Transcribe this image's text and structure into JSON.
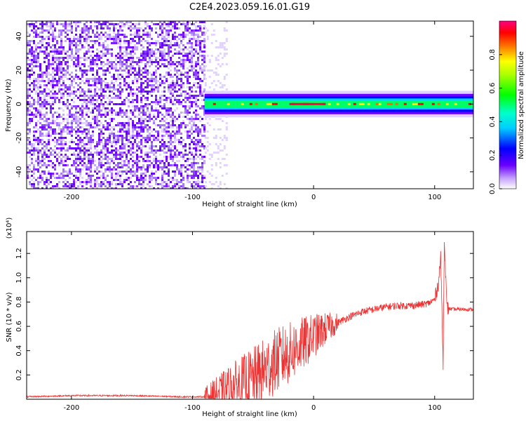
{
  "title": "C2E4.2023.059.16.01.G19",
  "chart_data": [
    {
      "type": "heatmap",
      "xlabel": "Height of straight line (km)",
      "ylabel": "Frequency (Hz)",
      "xlim": [
        -237,
        132
      ],
      "ylim": [
        -50,
        49
      ],
      "x_ticks": [
        -200,
        -100,
        0,
        100
      ],
      "y_ticks": [
        -40,
        -20,
        0,
        20,
        40
      ],
      "colorbar": {
        "label": "Normalized spectral amplitude",
        "range": [
          0,
          1
        ],
        "ticks": [
          0.0,
          0.2,
          0.4,
          0.6,
          0.8
        ],
        "colormap": [
          "#ffffff",
          "#6a00ff",
          "#0000ff",
          "#00ffff",
          "#00ff00",
          "#ffff00",
          "#ff0000",
          "#ff0080"
        ]
      },
      "regions": [
        {
          "x_range": [
            -237,
            -90
          ],
          "freq_range": [
            -50,
            49
          ],
          "amplitude": 0.15,
          "description": "broadband noise"
        },
        {
          "x_range": [
            -90,
            132
          ],
          "center_frequency_hz": 0,
          "half_width_hz": 3,
          "peak_amplitude": 1.0
        }
      ]
    },
    {
      "type": "line",
      "xlabel": "Height of straight line (km)",
      "ylabel": "SNR (10 * v/v)",
      "y_multiplier": "(x10⁴)",
      "xlim": [
        -237,
        132
      ],
      "ylim": [
        0,
        1.38
      ],
      "x_ticks": [
        -200,
        -100,
        0,
        100
      ],
      "y_ticks": [
        0.2,
        0.4,
        0.6,
        0.8,
        1.0,
        1.2
      ],
      "tick_labels_y": [
        "0.2",
        "0.4",
        "0.6",
        "0.8",
        "1.0",
        "1.2"
      ],
      "series_color": "#ee3333",
      "series": [
        {
          "x": [
            -237,
            -200,
            -150,
            -110,
            -90,
            -80,
            -70,
            -60,
            -50,
            -40,
            -30,
            -20,
            -10,
            0,
            10,
            20,
            30,
            40,
            50,
            60,
            70,
            80,
            90,
            95,
            100,
            103,
            105,
            107,
            108,
            110,
            115,
            120,
            132
          ],
          "y": [
            0.02,
            0.03,
            0.03,
            0.02,
            0.02,
            0.05,
            0.09,
            0.13,
            0.17,
            0.24,
            0.32,
            0.38,
            0.45,
            0.52,
            0.58,
            0.63,
            0.68,
            0.72,
            0.74,
            0.76,
            0.77,
            0.77,
            0.78,
            0.79,
            0.82,
            0.95,
            1.16,
            0.3,
            1.35,
            0.75,
            0.74,
            0.74,
            0.74
          ]
        }
      ]
    }
  ],
  "tick_labels_x": [
    "-200",
    "-100",
    "0",
    "100"
  ],
  "tick_labels_freq": [
    "-40",
    "-20",
    "0",
    "20",
    "40"
  ],
  "tick_labels_cbar": [
    "0.0",
    "0.2",
    "0.4",
    "0.6",
    "0.8"
  ]
}
